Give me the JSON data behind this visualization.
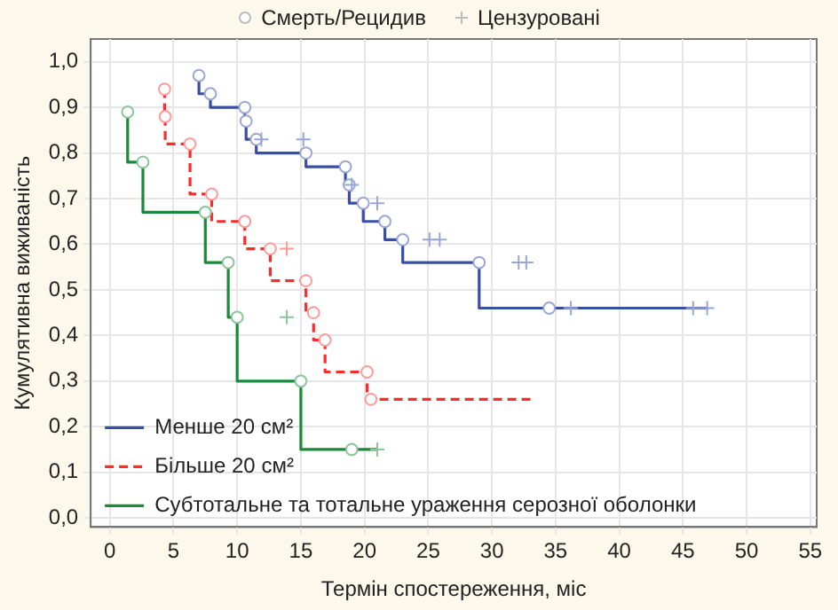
{
  "chart_data": {
    "type": "step",
    "xlabel": "Термін спостереження, міс",
    "ylabel": "Кумулятивна виживаність",
    "annotations": [
      "Смерть/Рецидив",
      "Цензуровані"
    ],
    "xlim": [
      -1.5,
      55.5
    ],
    "ylim": [
      -0.02,
      1.05
    ],
    "xticks": [
      0,
      5,
      10,
      15,
      20,
      25,
      30,
      35,
      40,
      45,
      50,
      55
    ],
    "yticks": [
      {
        "value": 0,
        "label": "0,0"
      },
      {
        "value": 0.1,
        "label": "0,1"
      },
      {
        "value": 0.2,
        "label": "0,2"
      },
      {
        "value": 0.3,
        "label": "0,3"
      },
      {
        "value": 0.4,
        "label": "0,4"
      },
      {
        "value": 0.5,
        "label": "0,5"
      },
      {
        "value": 0.6,
        "label": "0,6"
      },
      {
        "value": 0.7,
        "label": "0,7"
      },
      {
        "value": 0.8,
        "label": "0,8"
      },
      {
        "value": 0.9,
        "label": "0,9"
      },
      {
        "value": 1,
        "label": "1,0"
      }
    ],
    "grid": true,
    "legend": "bottom left",
    "series": [
      {
        "name": "Менше 20 см²",
        "color": "#3a4ea3",
        "line_style": "solid",
        "marker": "none",
        "x": [
          7.0,
          7.9,
          10.6,
          10.7,
          11.5,
          15.4,
          18.5,
          18.8,
          19.9,
          21.6,
          23.0,
          29.0,
          34.5,
          47.0
        ],
        "values": [
          0.97,
          0.93,
          0.9,
          0.87,
          0.83,
          0.8,
          0.77,
          0.73,
          0.69,
          0.65,
          0.61,
          0.56,
          0.46,
          0.46
        ]
      },
      {
        "name": "Більше 20 см²",
        "color": "#ff2a2a",
        "line_style": "dashed",
        "marker": "none",
        "x": [
          4.3,
          4.35,
          6.3,
          8.0,
          10.6,
          12.6,
          15.4,
          16.0,
          16.9,
          20.2,
          20.5,
          33.2
        ],
        "values": [
          0.94,
          0.88,
          0.82,
          0.71,
          0.65,
          0.59,
          0.52,
          0.45,
          0.39,
          0.32,
          0.26,
          0.26
        ]
      },
      {
        "name": "Субтотальне та тотальне ураження серозної оболонки",
        "color": "#1a8a3a",
        "line_style": "solid",
        "marker": "none",
        "x": [
          1.4,
          2.6,
          7.5,
          9.3,
          10.0,
          15.0,
          19.0,
          21.0
        ],
        "values": [
          0.89,
          0.78,
          0.67,
          0.56,
          0.44,
          0.3,
          0.15,
          0.15
        ]
      },
      {
        "type": "scatter",
        "color": "#9aa6d6",
        "marker": "circle",
        "x": [
          7.0,
          7.9,
          10.6,
          10.7,
          11.5,
          15.4,
          18.5,
          18.8,
          19.9,
          21.6,
          23.0,
          29.0,
          34.5
        ],
        "values": [
          0.97,
          0.93,
          0.9,
          0.87,
          0.83,
          0.8,
          0.77,
          0.73,
          0.69,
          0.65,
          0.61,
          0.56,
          0.46
        ]
      },
      {
        "type": "scatter",
        "color": "#ff9a9a",
        "marker": "circle",
        "x": [
          4.3,
          4.35,
          6.3,
          8.0,
          10.6,
          12.6,
          15.4,
          16.0,
          16.9,
          20.2,
          20.5
        ],
        "values": [
          0.94,
          0.88,
          0.82,
          0.71,
          0.65,
          0.59,
          0.52,
          0.45,
          0.39,
          0.32,
          0.26
        ]
      },
      {
        "type": "scatter",
        "color": "#8cc49c",
        "marker": "circle",
        "x": [
          1.4,
          2.6,
          7.5,
          9.3,
          10.0,
          15.0,
          19.0
        ],
        "values": [
          0.89,
          0.78,
          0.67,
          0.56,
          0.44,
          0.3,
          0.15
        ]
      },
      {
        "type": "scatter",
        "color": "#9aa6d6",
        "marker": "cross",
        "x": [
          11.9,
          15.2,
          19.0,
          21.0,
          25.1,
          25.9,
          32.1,
          32.7,
          36.2,
          45.8,
          46.9
        ],
        "values": [
          0.83,
          0.83,
          0.73,
          0.69,
          0.61,
          0.61,
          0.56,
          0.56,
          0.46,
          0.46,
          0.46
        ]
      },
      {
        "type": "scatter",
        "color": "#ff9a9a",
        "marker": "cross",
        "x": [
          13.9
        ],
        "values": [
          0.59
        ]
      },
      {
        "type": "scatter",
        "color": "#8cc49c",
        "marker": "cross",
        "x": [
          13.9,
          21.0
        ],
        "values": [
          0.44,
          0.15
        ]
      }
    ]
  }
}
